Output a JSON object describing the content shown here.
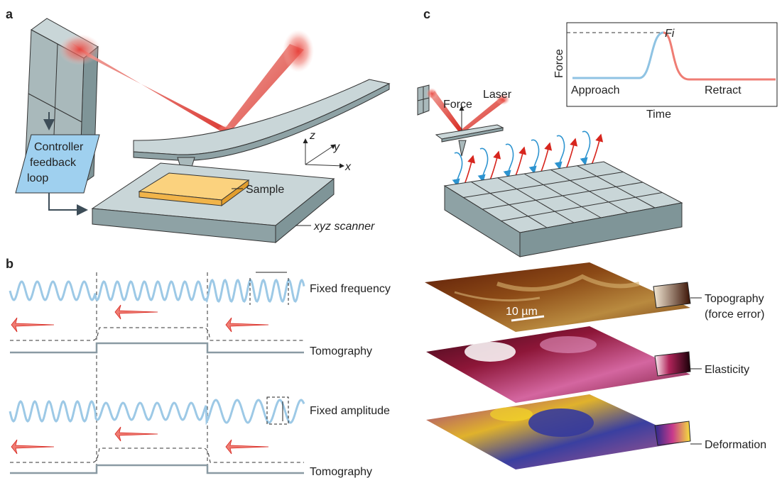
{
  "panels": {
    "a": "a",
    "b": "b",
    "c": "c"
  },
  "panel_a": {
    "controller": [
      "Controller",
      "feedback",
      "loop"
    ],
    "sample": "Sample",
    "scanner": "xyz scanner",
    "axis_z": "z",
    "axis_y": "y",
    "axis_x": "x"
  },
  "panel_b": {
    "fixed_frequency": "Fixed frequency",
    "tomography_1": "Tomography",
    "fixed_amplitude": "Fixed amplitude",
    "tomography_2": "Tomography"
  },
  "panel_c": {
    "force": "Force",
    "laser": "Laser",
    "inset": {
      "ylabel": "Force",
      "xlabel": "Time",
      "approach": "Approach",
      "retract": "Retract",
      "fi": "Fi"
    },
    "scale_bar": "10 µm",
    "maps": [
      "Topography",
      "(force error)",
      "Elasticity",
      "Deformation"
    ]
  },
  "colors": {
    "cantilever": "#a9b9bb",
    "laser_red": "#d7261e",
    "approach_blue": "#8fc3e3",
    "retract_red": "#ef7d74",
    "sample_yellow": "#fbd27e",
    "controller_blue": "#9fd0ef",
    "wave_blue": "#9dc9e6"
  }
}
